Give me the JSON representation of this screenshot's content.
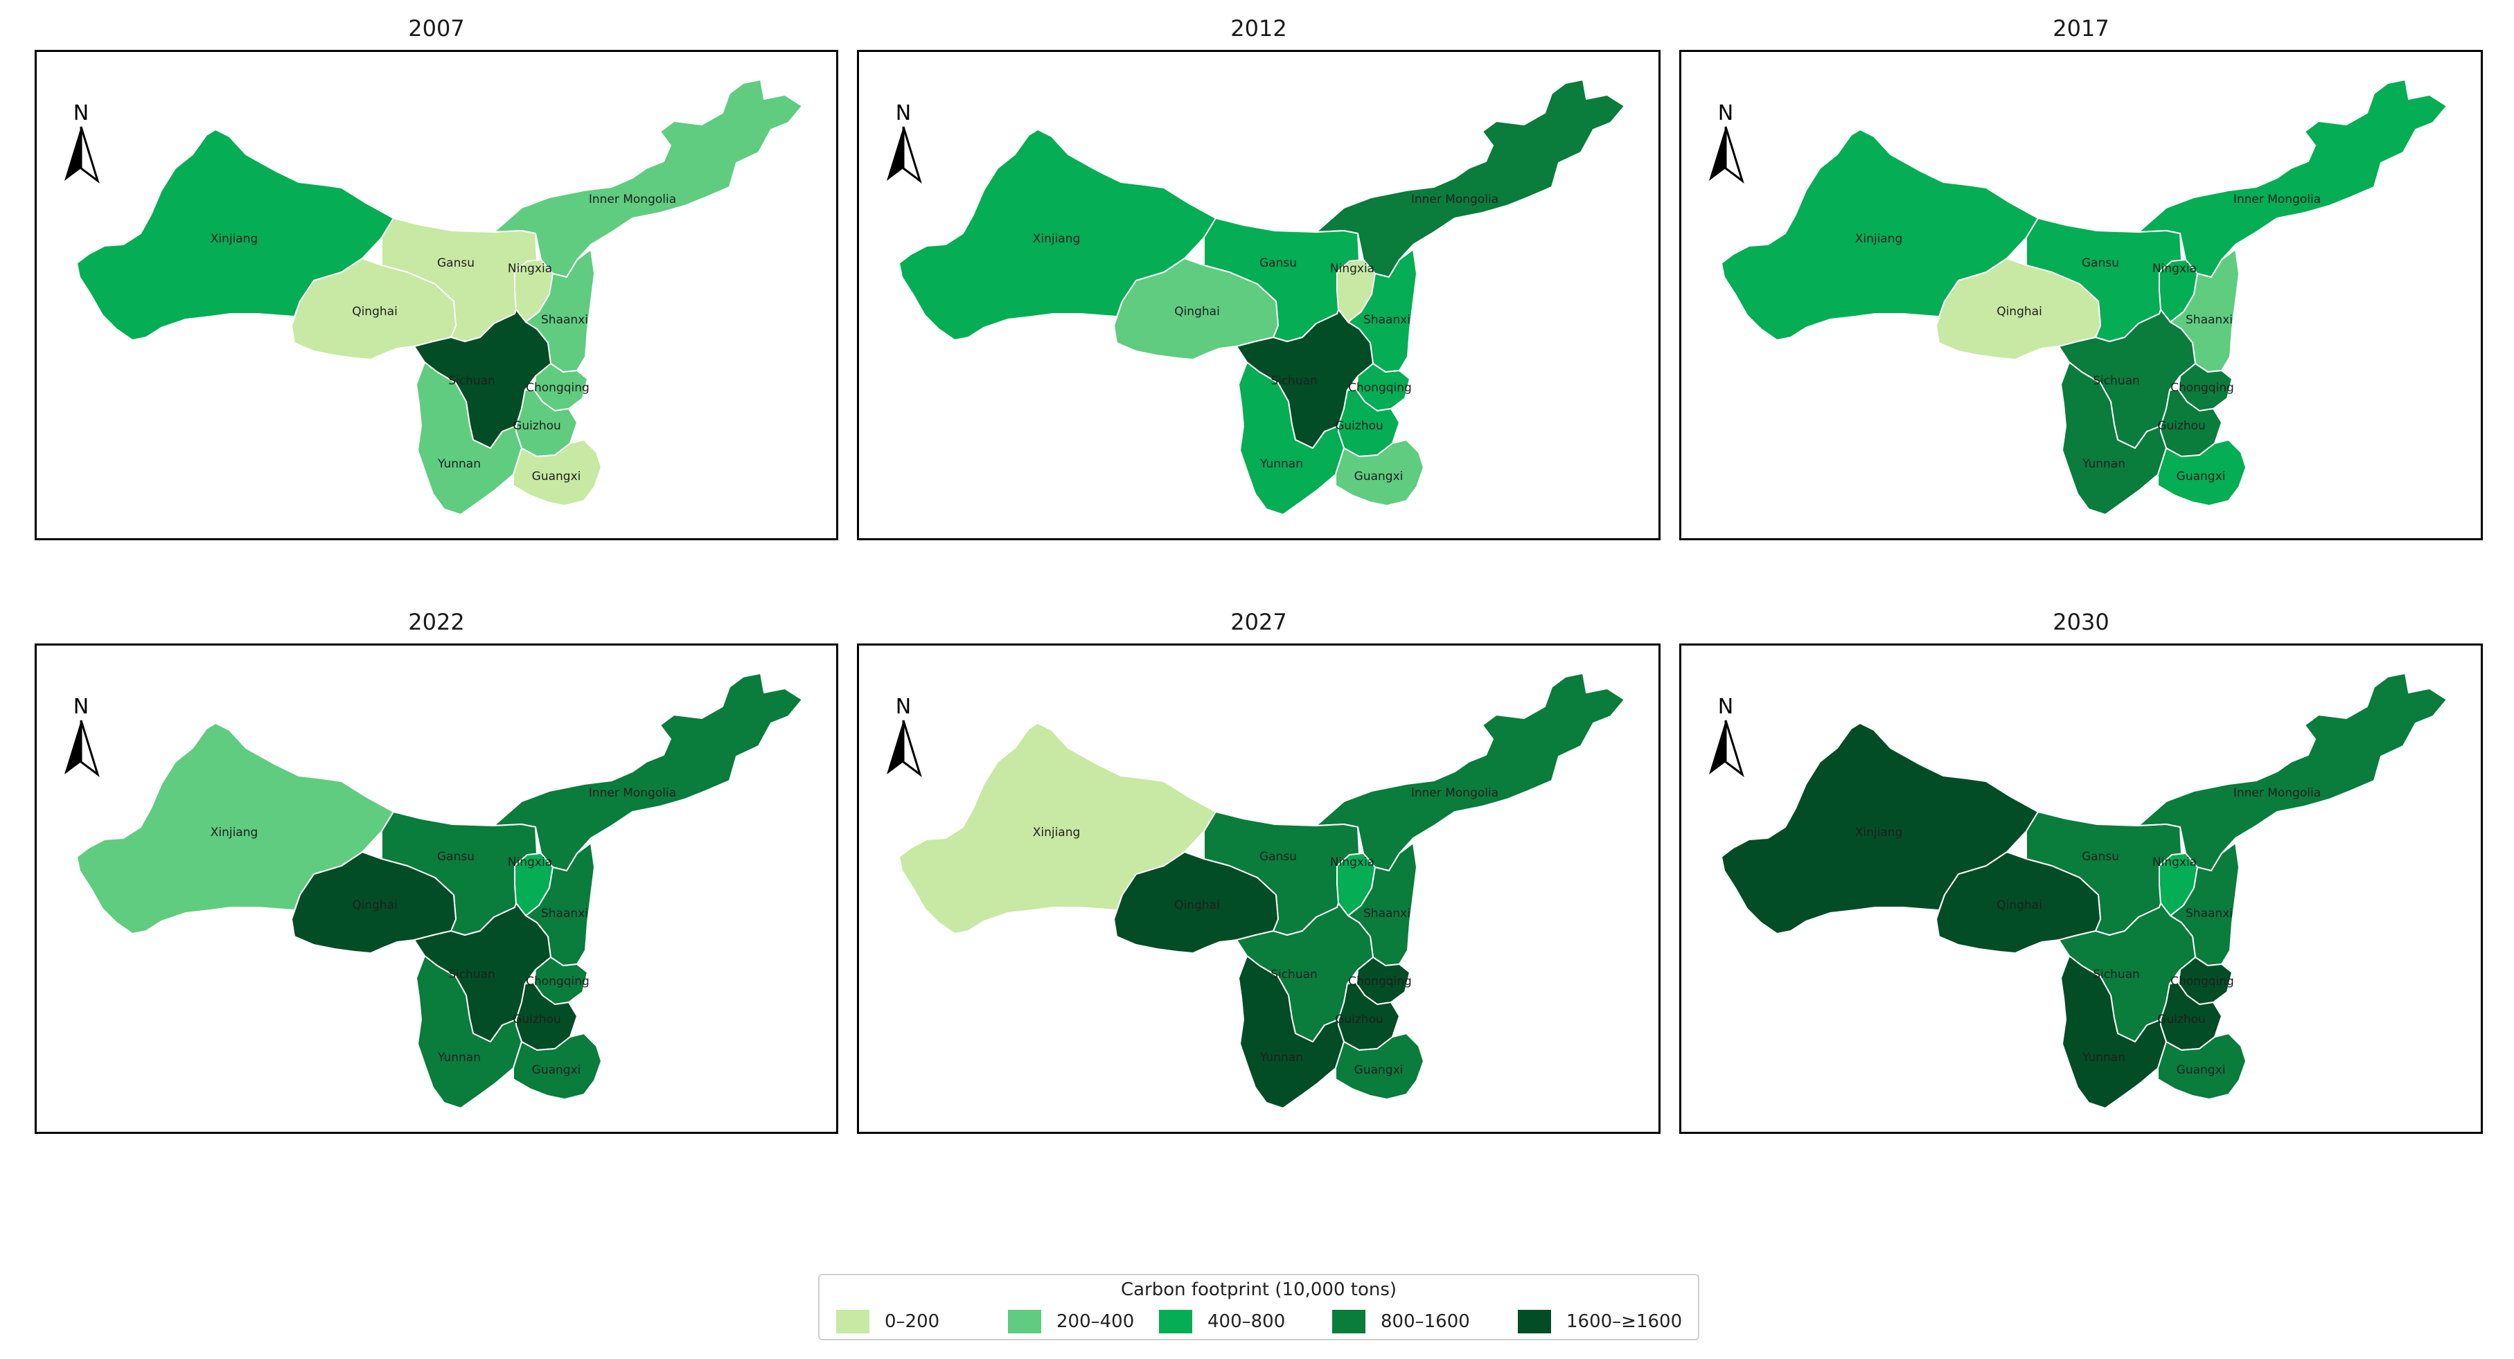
{
  "colors": {
    "c0": "#c7e9a4",
    "c1": "#5fcc7f",
    "c2": "#05ad54",
    "c3": "#0a7c3c",
    "c4": "#024d25",
    "border": "#ffffff",
    "frame": "#000000"
  },
  "north_label": "N",
  "provinces": [
    "Xinjiang",
    "Inner Mongolia",
    "Gansu",
    "Ningxia",
    "Qinghai",
    "Shaanxi",
    "Sichuan",
    "Chongqing",
    "Guizhou",
    "Yunnan",
    "Guangxi"
  ],
  "panels": [
    {
      "year": "2007",
      "classes": {
        "Xinjiang": "c2",
        "Inner Mongolia": "c1",
        "Gansu": "c0",
        "Ningxia": "c0",
        "Qinghai": "c0",
        "Shaanxi": "c1",
        "Sichuan": "c4",
        "Chongqing": "c1",
        "Guizhou": "c1",
        "Yunnan": "c1",
        "Guangxi": "c0"
      }
    },
    {
      "year": "2012",
      "classes": {
        "Xinjiang": "c2",
        "Inner Mongolia": "c3",
        "Gansu": "c2",
        "Ningxia": "c0",
        "Qinghai": "c1",
        "Shaanxi": "c2",
        "Sichuan": "c4",
        "Chongqing": "c2",
        "Guizhou": "c2",
        "Yunnan": "c2",
        "Guangxi": "c1"
      }
    },
    {
      "year": "2017",
      "classes": {
        "Xinjiang": "c2",
        "Inner Mongolia": "c2",
        "Gansu": "c2",
        "Ningxia": "c2",
        "Qinghai": "c0",
        "Shaanxi": "c1",
        "Sichuan": "c3",
        "Chongqing": "c3",
        "Guizhou": "c3",
        "Yunnan": "c3",
        "Guangxi": "c2"
      }
    },
    {
      "year": "2022",
      "classes": {
        "Xinjiang": "c1",
        "Inner Mongolia": "c3",
        "Gansu": "c3",
        "Ningxia": "c2",
        "Qinghai": "c4",
        "Shaanxi": "c3",
        "Sichuan": "c4",
        "Chongqing": "c3",
        "Guizhou": "c4",
        "Yunnan": "c3",
        "Guangxi": "c3"
      }
    },
    {
      "year": "2027",
      "classes": {
        "Xinjiang": "c0",
        "Inner Mongolia": "c3",
        "Gansu": "c3",
        "Ningxia": "c2",
        "Qinghai": "c4",
        "Shaanxi": "c3",
        "Sichuan": "c3",
        "Chongqing": "c4",
        "Guizhou": "c4",
        "Yunnan": "c4",
        "Guangxi": "c3"
      }
    },
    {
      "year": "2030",
      "classes": {
        "Xinjiang": "c4",
        "Inner Mongolia": "c3",
        "Gansu": "c3",
        "Ningxia": "c2",
        "Qinghai": "c4",
        "Shaanxi": "c3",
        "Sichuan": "c3",
        "Chongqing": "c4",
        "Guizhou": "c4",
        "Yunnan": "c4",
        "Guangxi": "c3"
      }
    }
  ],
  "legend": {
    "title": "Carbon footprint (10,000 tons)",
    "items": [
      {
        "label": "0–200",
        "color": "c0"
      },
      {
        "label": "200–400",
        "color": "c1"
      },
      {
        "label": "400–800",
        "color": "c2"
      },
      {
        "label": "800–1600",
        "color": "c3"
      },
      {
        "label": "1600–≥1600",
        "color": "c4"
      }
    ]
  }
}
